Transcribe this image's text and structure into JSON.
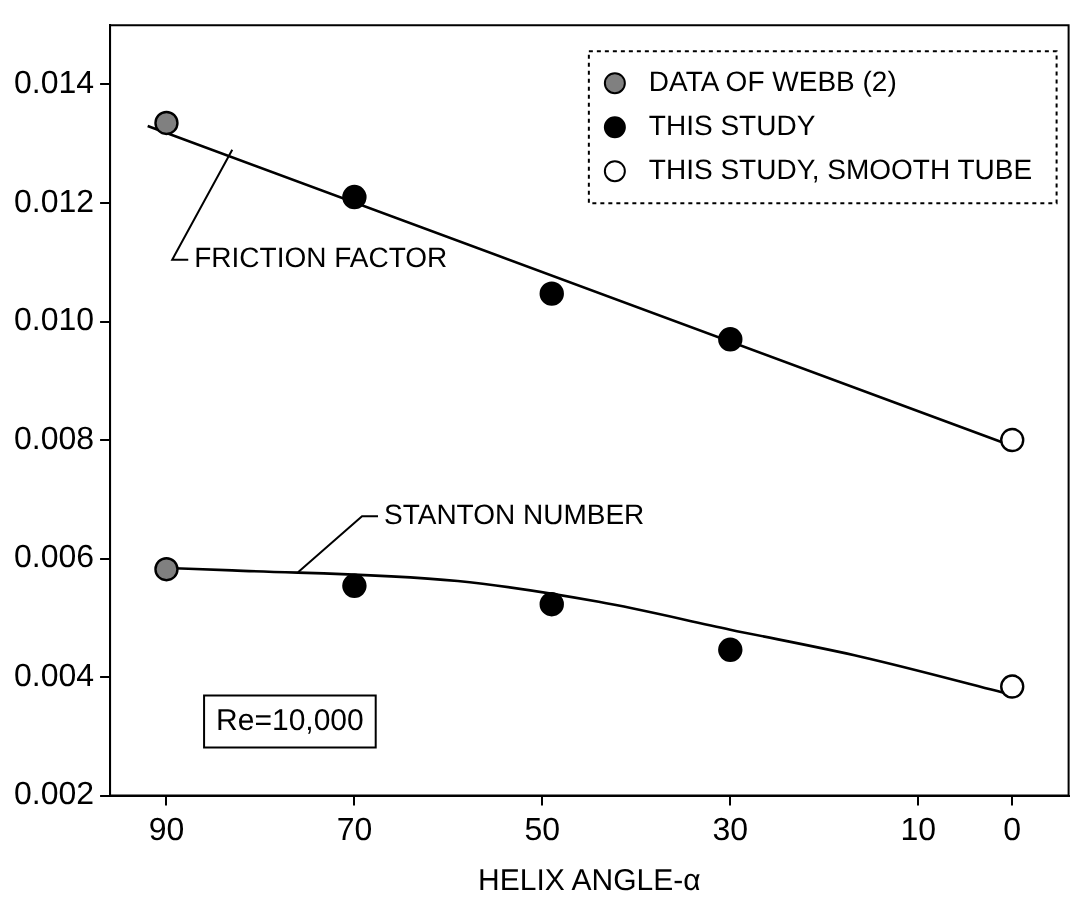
{
  "chart_data": {
    "type": "scatter",
    "xlabel": "HELIX ANGLE-α",
    "xlim": [
      96,
      -6
    ],
    "xticks": [
      90,
      70,
      50,
      30,
      10,
      0
    ],
    "ylim": [
      0.002,
      0.015
    ],
    "yticks": [
      0.002,
      0.004,
      0.006,
      0.008,
      {
        "value": 0.01,
        "label": "0.010"
      },
      0.012,
      0.014
    ],
    "grid": false,
    "legend": "top right",
    "marker": "circle",
    "series": [
      {
        "name": "DATA OF WEBB (2)",
        "color": "#808080",
        "x": [
          90,
          90
        ],
        "values": [
          0.01335,
          0.00582
        ]
      },
      {
        "name": "THIS STUDY",
        "color": "#000000",
        "x": [
          70,
          49,
          30,
          70,
          49,
          30
        ],
        "values": [
          0.0121,
          0.01047,
          0.0097,
          0.00554,
          0.00523,
          0.00446
        ]
      },
      {
        "name": "THIS STUDY, SMOOTH TUBE",
        "color": "#ffffff",
        "x": [
          0,
          0
        ],
        "values": [
          0.008,
          0.00384
        ]
      },
      {
        "type": "line",
        "marker": "none",
        "color": "#000000",
        "x": [
          92,
          0
        ],
        "values": [
          0.0133,
          0.0079
        ]
      },
      {
        "type": "line",
        "marker": "none",
        "color": "#000000",
        "x": [
          90,
          83,
          59,
          44,
          30,
          16,
          0
        ],
        "values": [
          0.00584,
          0.0058,
          0.00562,
          0.00527,
          0.0048,
          0.00434,
          0.0037
        ]
      }
    ],
    "annotations": [
      {
        "text": "FRICTION FACTOR",
        "x": 83,
        "y": 0.0129
      },
      {
        "text": "STANTON NUMBER",
        "x": 76,
        "y": 0.00577
      },
      "Re=10,000"
    ]
  }
}
